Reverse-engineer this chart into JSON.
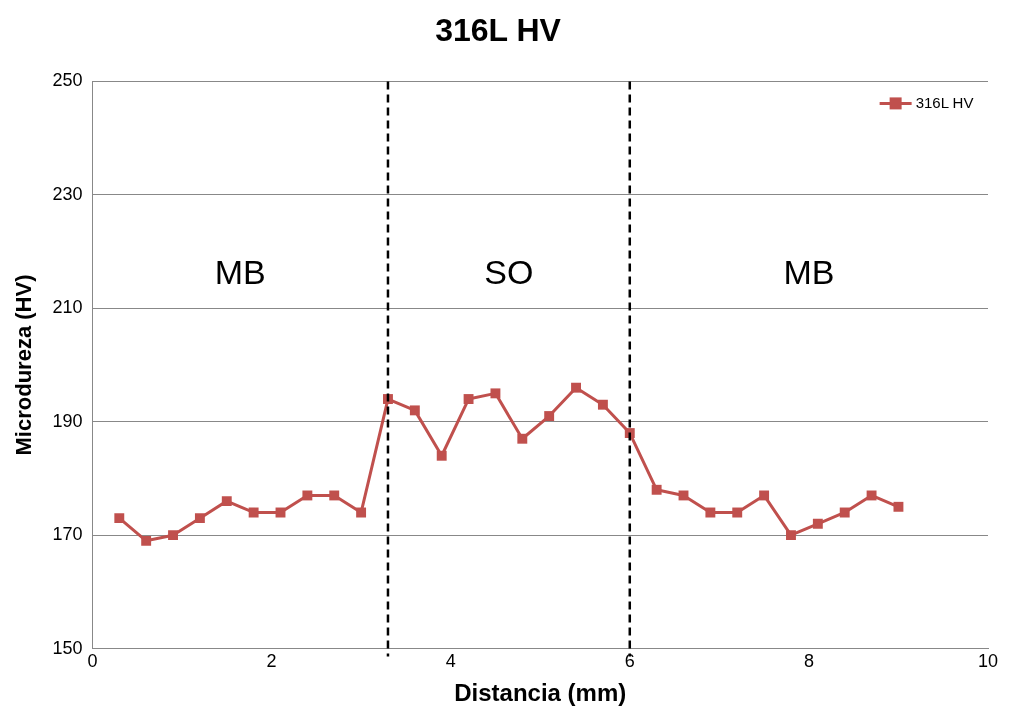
{
  "chart_data": {
    "type": "line",
    "title": "316L HV",
    "xlabel": "Distancia (mm)",
    "ylabel": "Microdureza (HV)",
    "x": [
      0.3,
      0.6,
      0.9,
      1.2,
      1.5,
      1.8,
      2.1,
      2.4,
      2.7,
      3.0,
      3.3,
      3.6,
      3.9,
      4.2,
      4.5,
      4.8,
      5.1,
      5.4,
      5.7,
      6.0,
      6.3,
      6.6,
      6.9,
      7.2,
      7.5,
      7.8,
      8.1,
      8.4,
      8.7,
      9.0
    ],
    "series": [
      {
        "name": "316L HV",
        "color": "#c0504d",
        "values": [
          173,
          169,
          170,
          173,
          176,
          174,
          174,
          177,
          177,
          174,
          194,
          192,
          184,
          194,
          195,
          187,
          191,
          196,
          193,
          188,
          178,
          177,
          174,
          174,
          177,
          170,
          172,
          174,
          177,
          175
        ]
      }
    ],
    "xlim": [
      0,
      10
    ],
    "xticks": [
      0,
      2,
      4,
      6,
      8,
      10
    ],
    "ylim": [
      150,
      250
    ],
    "yticks": [
      150,
      170,
      190,
      210,
      230,
      250
    ],
    "ref_lines": [
      {
        "axis": "x",
        "value": 3.3,
        "color": "#000000",
        "line_style": "dashed"
      },
      {
        "axis": "x",
        "value": 6.0,
        "color": "#000000",
        "line_style": "dashed"
      }
    ],
    "annotations": [
      "MB",
      "SO",
      "MB"
    ],
    "grid": "y",
    "legend": "top right",
    "marker": "square",
    "line_style": "solid"
  }
}
